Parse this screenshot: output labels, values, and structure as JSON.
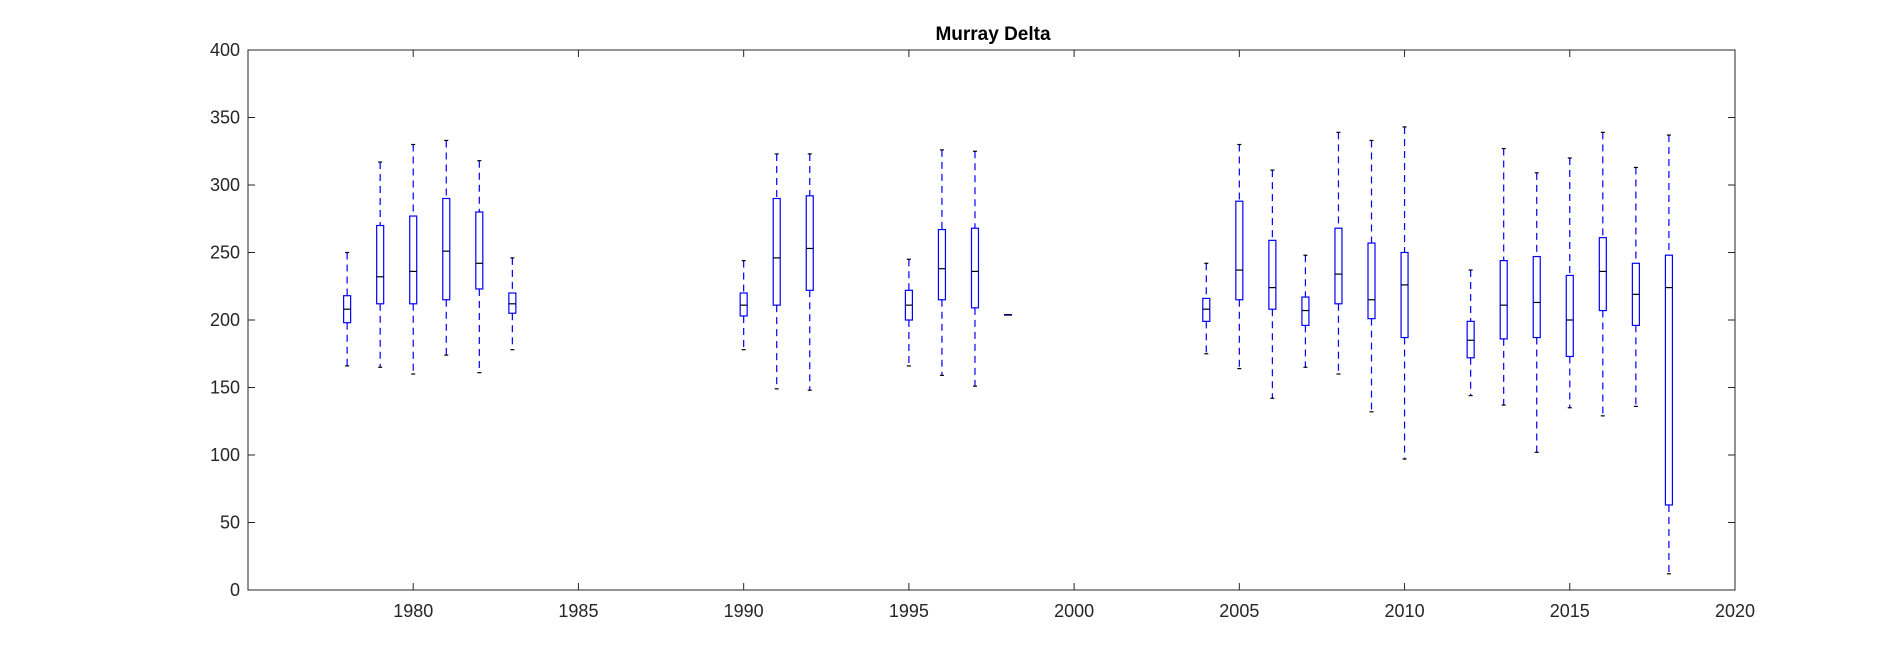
{
  "chart_data": {
    "type": "boxplot",
    "title": "Murray Delta",
    "xlabel": "",
    "ylabel": "",
    "xlim": [
      1975,
      2020
    ],
    "ylim": [
      0,
      400
    ],
    "x_ticks": [
      1980,
      1985,
      1990,
      1995,
      2000,
      2005,
      2010,
      2015,
      2020
    ],
    "y_ticks": [
      0,
      50,
      100,
      150,
      200,
      250,
      300,
      350,
      400
    ],
    "grid": false,
    "colors": {
      "box": "#0000ff",
      "median": "#000000",
      "axis": "#262626"
    },
    "boxes": [
      {
        "x": 1978,
        "low": 166,
        "q1": 198,
        "median": 208,
        "q3": 218,
        "high": 250
      },
      {
        "x": 1979,
        "low": 165,
        "q1": 212,
        "median": 232,
        "q3": 270,
        "high": 317
      },
      {
        "x": 1980,
        "low": 160,
        "q1": 212,
        "median": 236,
        "q3": 277,
        "high": 330
      },
      {
        "x": 1981,
        "low": 174,
        "q1": 215,
        "median": 251,
        "q3": 290,
        "high": 333
      },
      {
        "x": 1982,
        "low": 161,
        "q1": 223,
        "median": 242,
        "q3": 280,
        "high": 318
      },
      {
        "x": 1983,
        "low": 178,
        "q1": 205,
        "median": 212,
        "q3": 220,
        "high": 246
      },
      {
        "x": 1990,
        "low": 178,
        "q1": 203,
        "median": 211,
        "q3": 220,
        "high": 244
      },
      {
        "x": 1991,
        "low": 149,
        "q1": 211,
        "median": 246,
        "q3": 290,
        "high": 323
      },
      {
        "x": 1992,
        "low": 148,
        "q1": 222,
        "median": 253,
        "q3": 292,
        "high": 323
      },
      {
        "x": 1995,
        "low": 166,
        "q1": 200,
        "median": 211,
        "q3": 222,
        "high": 245
      },
      {
        "x": 1996,
        "low": 159,
        "q1": 215,
        "median": 238,
        "q3": 267,
        "high": 326
      },
      {
        "x": 1997,
        "low": 151,
        "q1": 209,
        "median": 236,
        "q3": 268,
        "high": 325
      },
      {
        "x": 1998,
        "low": 204,
        "q1": 204,
        "median": 204,
        "q3": 204,
        "high": 204
      },
      {
        "x": 2004,
        "low": 175,
        "q1": 199,
        "median": 208,
        "q3": 216,
        "high": 242
      },
      {
        "x": 2005,
        "low": 164,
        "q1": 215,
        "median": 237,
        "q3": 288,
        "high": 330
      },
      {
        "x": 2006,
        "low": 142,
        "q1": 208,
        "median": 224,
        "q3": 259,
        "high": 311
      },
      {
        "x": 2007,
        "low": 165,
        "q1": 196,
        "median": 207,
        "q3": 217,
        "high": 248
      },
      {
        "x": 2008,
        "low": 160,
        "q1": 212,
        "median": 234,
        "q3": 268,
        "high": 339
      },
      {
        "x": 2009,
        "low": 132,
        "q1": 201,
        "median": 215,
        "q3": 257,
        "high": 333
      },
      {
        "x": 2010,
        "low": 97,
        "q1": 187,
        "median": 226,
        "q3": 250,
        "high": 343
      },
      {
        "x": 2012,
        "low": 144,
        "q1": 172,
        "median": 185,
        "q3": 199,
        "high": 237
      },
      {
        "x": 2013,
        "low": 137,
        "q1": 186,
        "median": 211,
        "q3": 244,
        "high": 327
      },
      {
        "x": 2014,
        "low": 102,
        "q1": 187,
        "median": 213,
        "q3": 247,
        "high": 309
      },
      {
        "x": 2015,
        "low": 135,
        "q1": 173,
        "median": 200,
        "q3": 233,
        "high": 320
      },
      {
        "x": 2016,
        "low": 129,
        "q1": 207,
        "median": 236,
        "q3": 261,
        "high": 339
      },
      {
        "x": 2017,
        "low": 136,
        "q1": 196,
        "median": 219,
        "q3": 242,
        "high": 313
      },
      {
        "x": 2018,
        "low": 12,
        "q1": 63,
        "median": 224,
        "q3": 248,
        "high": 337
      }
    ]
  }
}
